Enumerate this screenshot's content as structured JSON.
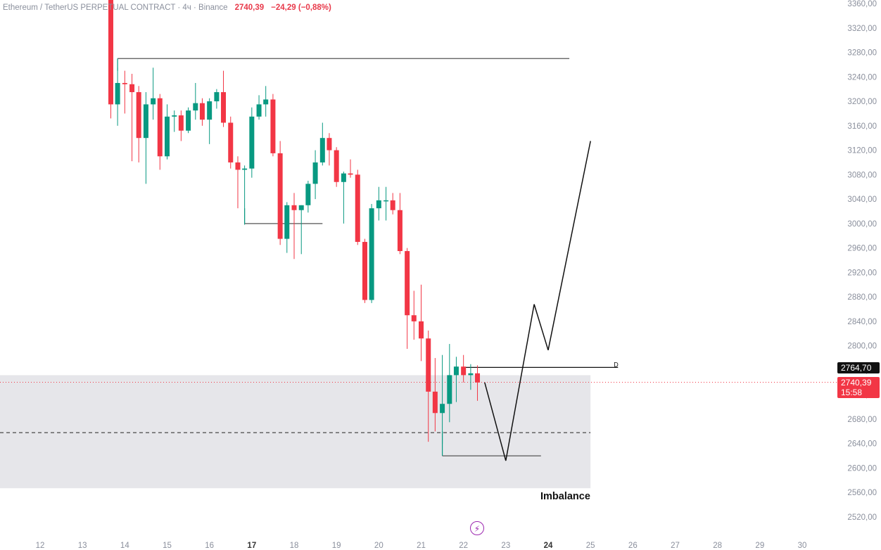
{
  "header": {
    "symbol": "Ethereum / TetherUS PERPETUAL CONTRACT · 4ч · Binance",
    "last_price": "2740,39",
    "change": "−24,29 (−0,88%)"
  },
  "tags": {
    "level": "2764,70",
    "last": "2740,39",
    "countdown": "15:58"
  },
  "annotation": {
    "zone_label": "Imbalance",
    "marker": "D"
  },
  "colors": {
    "up": "#089981",
    "down": "#f23645",
    "zone": "#e6e6ea",
    "axis_text": "#8a8f9c"
  },
  "icons": {
    "bolt": "lightning-icon"
  },
  "chart_data": {
    "type": "candlestick",
    "title": "Ethereum / TetherUS PERPETUAL CONTRACT · 4ч · Binance",
    "ylim": [
      2500,
      3370
    ],
    "yticks": [
      2520,
      2560,
      2600,
      2640,
      2680,
      2720,
      2760,
      2800,
      2840,
      2880,
      2920,
      2960,
      3000,
      3040,
      3080,
      3120,
      3160,
      3200,
      3240,
      3280,
      3320,
      3360
    ],
    "ytick_labels": [
      "2520,00",
      "2560,00",
      "2600,00",
      "2640,00",
      "2680,00",
      "2720,00",
      "2760,00",
      "2800,00",
      "2840,00",
      "2880,00",
      "2920,00",
      "2960,00",
      "3000,00",
      "3040,00",
      "3080,00",
      "3120,00",
      "3160,00",
      "3200,00",
      "3240,00",
      "3280,00",
      "3320,00",
      "3360,00"
    ],
    "xlim": [
      11.25,
      31
    ],
    "xticks": [
      12,
      13,
      14,
      15,
      16,
      17,
      18,
      19,
      20,
      21,
      22,
      23,
      24,
      25,
      26,
      27,
      28,
      29,
      30
    ],
    "xtick_labels": [
      "12",
      "13",
      "14",
      "15",
      "16",
      "17",
      "18",
      "19",
      "20",
      "21",
      "22",
      "23",
      "24",
      "25",
      "26",
      "27",
      "28",
      "29",
      "30"
    ],
    "xticks_bold": [
      "17",
      "24"
    ],
    "candles": [
      {
        "x": 13.67,
        "o": 3370,
        "h": 3380,
        "l": 3172,
        "c": 3195
      },
      {
        "x": 13.83,
        "o": 3195,
        "h": 3255,
        "l": 3160,
        "c": 3230
      },
      {
        "x": 14.0,
        "o": 3230,
        "h": 3250,
        "l": 3180,
        "c": 3228
      },
      {
        "x": 14.17,
        "o": 3228,
        "h": 3245,
        "l": 3102,
        "c": 3215
      },
      {
        "x": 14.33,
        "o": 3215,
        "h": 3225,
        "l": 3100,
        "c": 3140
      },
      {
        "x": 14.5,
        "o": 3140,
        "h": 3215,
        "l": 3065,
        "c": 3195
      },
      {
        "x": 14.67,
        "o": 3195,
        "h": 3255,
        "l": 3170,
        "c": 3205
      },
      {
        "x": 14.83,
        "o": 3205,
        "h": 3212,
        "l": 3088,
        "c": 3110
      },
      {
        "x": 15.0,
        "o": 3110,
        "h": 3195,
        "l": 3105,
        "c": 3175
      },
      {
        "x": 15.17,
        "o": 3175,
        "h": 3185,
        "l": 3150,
        "c": 3177
      },
      {
        "x": 15.33,
        "o": 3177,
        "h": 3185,
        "l": 3135,
        "c": 3152
      },
      {
        "x": 15.5,
        "o": 3152,
        "h": 3190,
        "l": 3148,
        "c": 3185
      },
      {
        "x": 15.67,
        "o": 3185,
        "h": 3230,
        "l": 3170,
        "c": 3197
      },
      {
        "x": 15.83,
        "o": 3197,
        "h": 3205,
        "l": 3160,
        "c": 3170
      },
      {
        "x": 16.0,
        "o": 3170,
        "h": 3205,
        "l": 3130,
        "c": 3200
      },
      {
        "x": 16.17,
        "o": 3200,
        "h": 3220,
        "l": 3188,
        "c": 3215
      },
      {
        "x": 16.33,
        "o": 3215,
        "h": 3250,
        "l": 3158,
        "c": 3165
      },
      {
        "x": 16.5,
        "o": 3165,
        "h": 3175,
        "l": 3090,
        "c": 3100
      },
      {
        "x": 16.67,
        "o": 3100,
        "h": 3110,
        "l": 3025,
        "c": 3088
      },
      {
        "x": 16.83,
        "o": 3088,
        "h": 3095,
        "l": 2998,
        "c": 3090
      },
      {
        "x": 17.0,
        "o": 3090,
        "h": 3190,
        "l": 3075,
        "c": 3175
      },
      {
        "x": 17.17,
        "o": 3175,
        "h": 3210,
        "l": 3170,
        "c": 3195
      },
      {
        "x": 17.33,
        "o": 3195,
        "h": 3225,
        "l": 3175,
        "c": 3203
      },
      {
        "x": 17.5,
        "o": 3203,
        "h": 3212,
        "l": 3110,
        "c": 3115
      },
      {
        "x": 17.67,
        "o": 3115,
        "h": 3135,
        "l": 2965,
        "c": 2975
      },
      {
        "x": 17.83,
        "o": 2975,
        "h": 3035,
        "l": 2952,
        "c": 3030
      },
      {
        "x": 18.0,
        "o": 3030,
        "h": 3050,
        "l": 2942,
        "c": 3022
      },
      {
        "x": 18.17,
        "o": 3022,
        "h": 3030,
        "l": 2950,
        "c": 3030
      },
      {
        "x": 18.33,
        "o": 3030,
        "h": 3070,
        "l": 3018,
        "c": 3065
      },
      {
        "x": 18.5,
        "o": 3065,
        "h": 3120,
        "l": 3040,
        "c": 3100
      },
      {
        "x": 18.67,
        "o": 3100,
        "h": 3165,
        "l": 3095,
        "c": 3140
      },
      {
        "x": 18.83,
        "o": 3140,
        "h": 3148,
        "l": 3095,
        "c": 3120
      },
      {
        "x": 19.0,
        "o": 3120,
        "h": 3125,
        "l": 3060,
        "c": 3068
      },
      {
        "x": 19.17,
        "o": 3068,
        "h": 3085,
        "l": 3000,
        "c": 3082
      },
      {
        "x": 19.33,
        "o": 3082,
        "h": 3105,
        "l": 3075,
        "c": 3080
      },
      {
        "x": 19.5,
        "o": 3080,
        "h": 3088,
        "l": 2965,
        "c": 2970
      },
      {
        "x": 19.67,
        "o": 2970,
        "h": 2975,
        "l": 2870,
        "c": 2875
      },
      {
        "x": 19.83,
        "o": 2875,
        "h": 3032,
        "l": 2870,
        "c": 3025
      },
      {
        "x": 20.0,
        "o": 3025,
        "h": 3060,
        "l": 3005,
        "c": 3038
      },
      {
        "x": 20.17,
        "o": 3038,
        "h": 3060,
        "l": 3005,
        "c": 3038
      },
      {
        "x": 20.33,
        "o": 3038,
        "h": 3050,
        "l": 3015,
        "c": 3022
      },
      {
        "x": 20.5,
        "o": 3022,
        "h": 3050,
        "l": 2950,
        "c": 2955
      },
      {
        "x": 20.67,
        "o": 2955,
        "h": 2960,
        "l": 2795,
        "c": 2850
      },
      {
        "x": 20.83,
        "o": 2850,
        "h": 2890,
        "l": 2810,
        "c": 2840
      },
      {
        "x": 21.0,
        "o": 2840,
        "h": 2900,
        "l": 2775,
        "c": 2812
      },
      {
        "x": 21.17,
        "o": 2812,
        "h": 2825,
        "l": 2643,
        "c": 2725
      },
      {
        "x": 21.33,
        "o": 2725,
        "h": 2780,
        "l": 2660,
        "c": 2690
      },
      {
        "x": 21.5,
        "o": 2690,
        "h": 2785,
        "l": 2640,
        "c": 2705
      },
      {
        "x": 21.67,
        "o": 2705,
        "h": 2803,
        "l": 2675,
        "c": 2752
      },
      {
        "x": 21.83,
        "o": 2752,
        "h": 2782,
        "l": 2708,
        "c": 2766
      },
      {
        "x": 22.0,
        "o": 2766,
        "h": 2785,
        "l": 2740,
        "c": 2752
      },
      {
        "x": 22.17,
        "o": 2752,
        "h": 2770,
        "l": 2728,
        "c": 2755
      },
      {
        "x": 22.33,
        "o": 2755,
        "h": 2768,
        "l": 2710,
        "c": 2740
      }
    ],
    "zone": {
      "x0": 11.25,
      "x1": 25.0,
      "y0": 2567,
      "y1": 2752
    },
    "zone_mid": 2658,
    "last_price_line": 2740.39,
    "level_line": {
      "x0": 22.0,
      "x1": 25.65,
      "y": 2764.7
    },
    "annot_lines": [
      {
        "x0": 13.83,
        "x1": 24.5,
        "y": 3270
      },
      {
        "x0": 16.83,
        "x1": 18.67,
        "y": 3000
      },
      {
        "x0": 21.5,
        "x1": 23.83,
        "y": 2620
      }
    ],
    "annot_ticks": [
      {
        "x": 13.83,
        "y0": 3270,
        "y1": 3250
      },
      {
        "x": 16.83,
        "y0": 3000,
        "y1": 3025
      },
      {
        "x": 21.5,
        "y0": 2620,
        "y1": 2660
      }
    ],
    "projection": [
      {
        "x": 22.5,
        "y": 2740
      },
      {
        "x": 23.0,
        "y": 2612
      },
      {
        "x": 23.67,
        "y": 2868
      },
      {
        "x": 24.0,
        "y": 2793
      },
      {
        "x": 25.0,
        "y": 3135
      }
    ]
  }
}
